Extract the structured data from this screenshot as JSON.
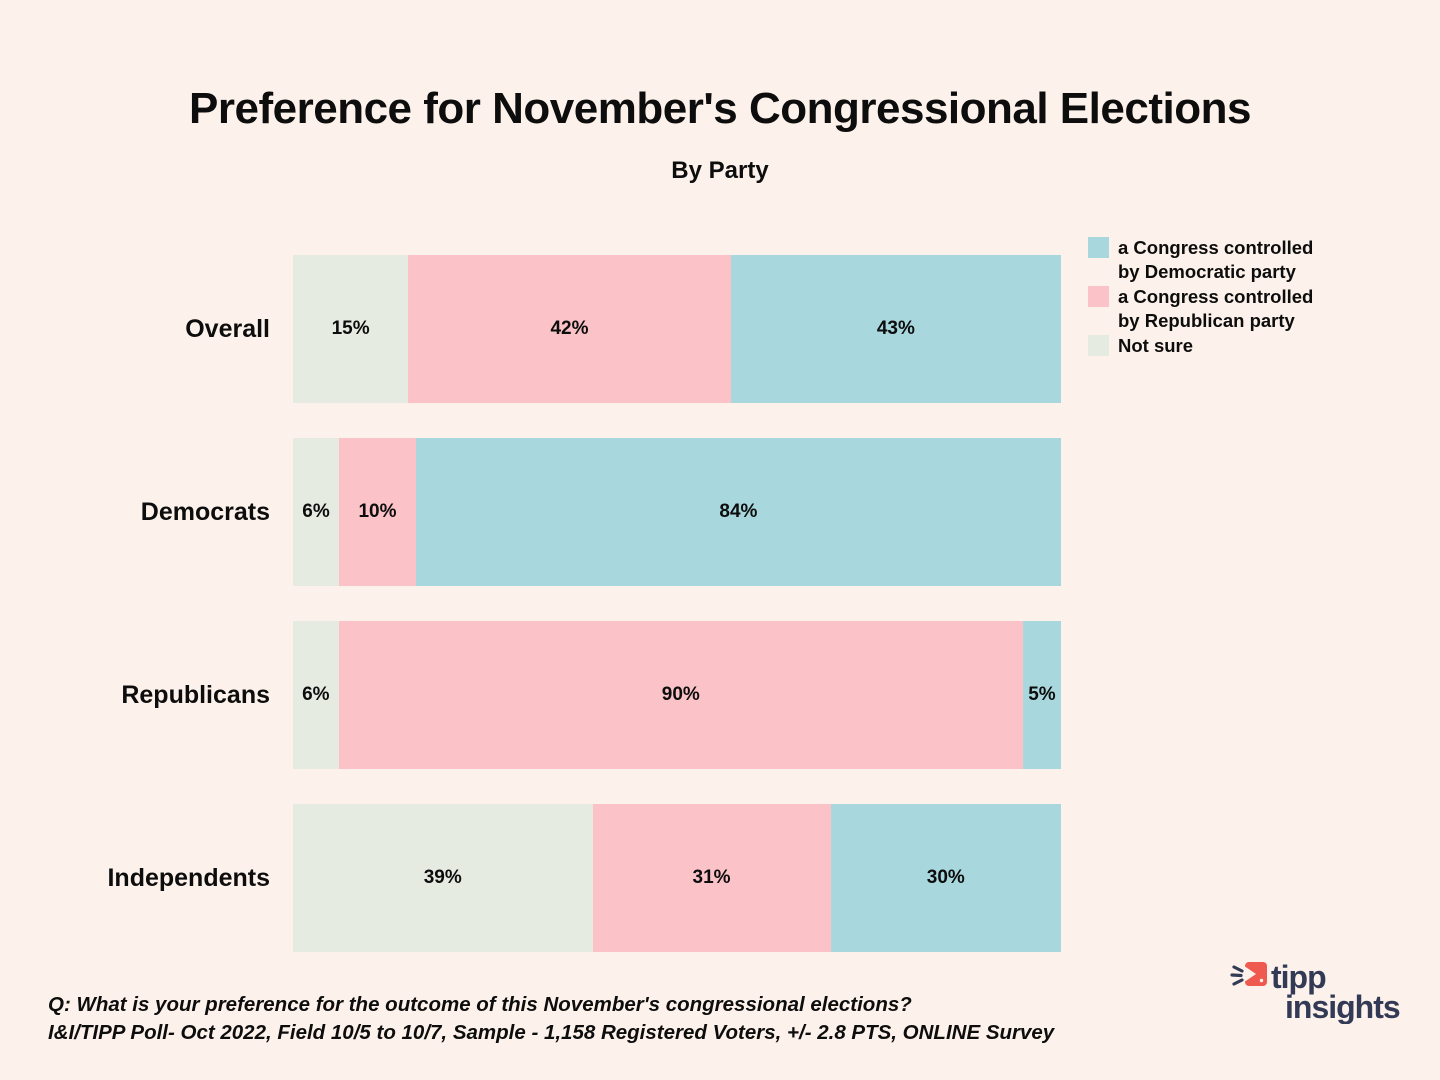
{
  "header": {
    "title": "Preference for November's Congressional Elections",
    "subtitle": "By Party"
  },
  "chart_data": {
    "type": "bar",
    "orientation": "horizontal",
    "stacked": true,
    "title": "Preference for November's Congressional Elections",
    "subtitle": "By Party",
    "categories": [
      "Overall",
      "Democrats",
      "Republicans",
      "Independents"
    ],
    "series": [
      {
        "key": "not-sure",
        "name": "Not sure",
        "color": "#E6EBE2",
        "values": [
          15,
          6,
          6,
          39
        ]
      },
      {
        "key": "republican",
        "name": "a Congress controlled by Republican party",
        "color": "#FBC2C8",
        "values": [
          42,
          10,
          90,
          31
        ]
      },
      {
        "key": "democratic",
        "name": "a Congress controlled by Democratic party",
        "color": "#A8D8DE",
        "values": [
          43,
          84,
          5,
          30
        ]
      }
    ],
    "value_suffix": "%",
    "segment_order_left_to_right": [
      "Not sure",
      "Republican",
      "Democratic"
    ],
    "legend_position": "right",
    "grid": false,
    "background": "#FDF2EB"
  },
  "legend": {
    "items": [
      {
        "key": "democratic",
        "label": "a Congress controlled by Democratic party",
        "color": "#A8D8DE"
      },
      {
        "key": "republican",
        "label": "a Congress controlled by Republican party",
        "color": "#FBC2C8"
      },
      {
        "key": "not-sure",
        "label": "Not sure",
        "color": "#E6EBE2"
      }
    ]
  },
  "footer": {
    "question": "Q: What is your preference for the outcome of this November's congressional elections?",
    "source": "I&I/TIPP Poll- Oct 2022, Field 10/5 to 10/7, Sample - 1,158 Registered Voters, +/- 2.8 PTS, ONLINE Survey"
  },
  "logo": {
    "line1": "tipp",
    "line2": "insights",
    "navy": "#333A56",
    "red": "#EE5A4F"
  }
}
